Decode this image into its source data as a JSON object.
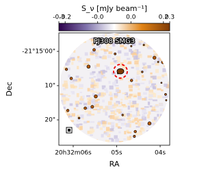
{
  "chart_data": {
    "type": "image",
    "colorbar": {
      "label": "S_ν [mJy beam⁻¹]",
      "norm": "symlog",
      "linthresh": 0.01,
      "lim": [
        -0.3,
        0.3
      ],
      "ticks": [
        -0.3,
        -0.2,
        {
          "value": -0.018,
          "label": "-0.0"
        },
        {
          "value": 0.018,
          "label": "0.0"
        },
        0.2,
        0.3
      ],
      "colors": [
        "#2d004b",
        "#8073ac",
        "#ffffff",
        "#e08214",
        "#7f3b08"
      ]
    },
    "annotation": "PJ308 SMG3",
    "x_label": "RA",
    "y_label": "Dec",
    "xlim": [
      6.33,
      3.78
    ],
    "xticks": [
      {
        "value": 6,
        "label": "20h32m06s"
      },
      {
        "value": 5,
        "label": "05s"
      },
      {
        "value": 4,
        "label": "04s"
      }
    ],
    "ylim": [
      -5.4,
      27.4
    ],
    "yticks": [
      {
        "value": 0,
        "label": "-21°15'00\""
      },
      {
        "value": 10,
        "label": "10\""
      },
      {
        "value": 20,
        "label": "20\""
      }
    ]
  }
}
